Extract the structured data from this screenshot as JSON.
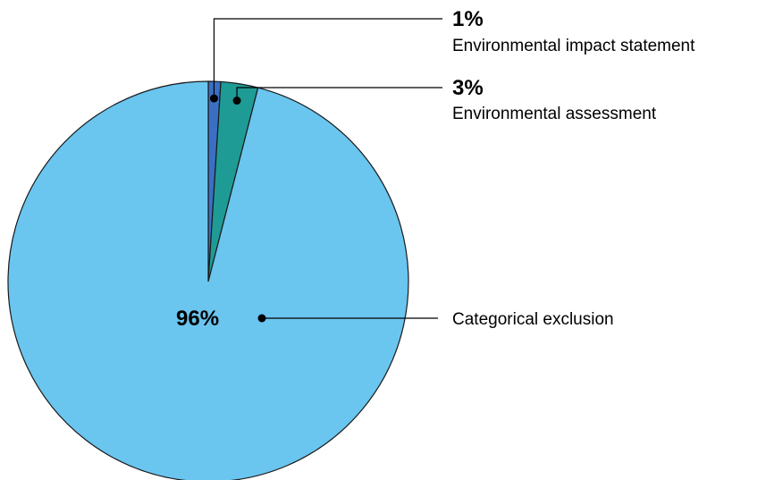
{
  "chart_data": {
    "type": "pie",
    "title": "",
    "slices": [
      {
        "label": "Environmental impact statement",
        "value": 1,
        "value_label": "1%",
        "color": "#3a6fc4"
      },
      {
        "label": "Environmental assessment",
        "value": 3,
        "value_label": "3%",
        "color": "#1f9b95"
      },
      {
        "label": "Categorical exclusion",
        "value": 96,
        "value_label": "96%",
        "color": "#6ac5ef"
      }
    ],
    "start_angle_deg": 0,
    "direction": "clockwise",
    "legend": "none"
  }
}
